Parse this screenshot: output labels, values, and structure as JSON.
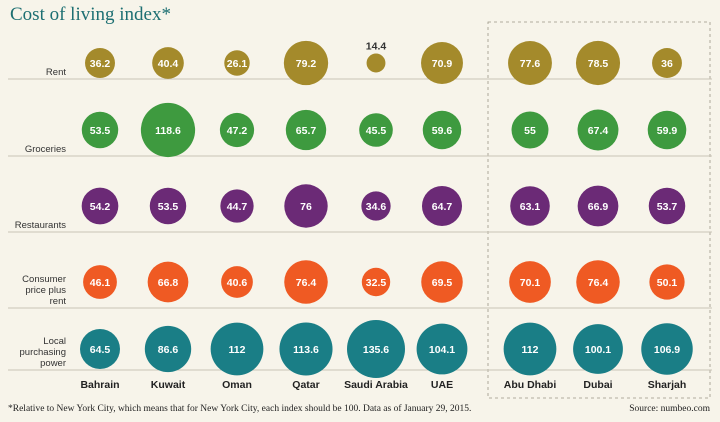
{
  "title": "Cost of living index*",
  "footnote": "*Relative to New York City, which means that for New York City, each index should be 100. Data as of January 29, 2015.",
  "source": "Source: numbeo.com",
  "colors": {
    "Rent": "#a48a2b",
    "Groceries": "#3e9a3f",
    "Restaurants": "#6b2a76",
    "Consumer price plus rent": "#ef5a23",
    "Local purchasing power": "#1a7e86",
    "background": "#f7f4ea",
    "grid": "#c9c4b6",
    "label": "#333333"
  },
  "chart_data": {
    "type": "bubble-matrix",
    "categories": [
      "Bahrain",
      "Kuwait",
      "Oman",
      "Qatar",
      "Saudi Arabia",
      "UAE",
      "Abu Dhabi",
      "Dubai",
      "Sharjah"
    ],
    "highlighted_group": [
      "Abu Dhabi",
      "Dubai",
      "Sharjah"
    ],
    "series": [
      {
        "name": "Rent",
        "values": [
          36.2,
          40.4,
          26.1,
          79.2,
          14.4,
          70.9,
          77.6,
          78.5,
          36
        ]
      },
      {
        "name": "Groceries",
        "values": [
          53.5,
          118.6,
          47.2,
          65.7,
          45.5,
          59.6,
          55,
          67.4,
          59.9
        ]
      },
      {
        "name": "Restaurants",
        "values": [
          54.2,
          53.5,
          44.7,
          76,
          34.6,
          64.7,
          63.1,
          66.9,
          53.7
        ]
      },
      {
        "name": "Consumer price plus rent",
        "values": [
          46.1,
          66.8,
          40.6,
          76.4,
          32.5,
          69.5,
          70.1,
          76.4,
          50.1
        ]
      },
      {
        "name": "Local purchasing power",
        "values": [
          64.5,
          86.6,
          112,
          113.6,
          135.6,
          104.1,
          112,
          100.1,
          106.9
        ]
      }
    ],
    "row_labels": [
      [
        "Rent"
      ],
      [
        "Groceries"
      ],
      [
        "Restaurants"
      ],
      [
        "Consumer",
        "price plus",
        "rent"
      ],
      [
        "Local",
        "purchasing",
        "power"
      ]
    ],
    "grid": true
  }
}
